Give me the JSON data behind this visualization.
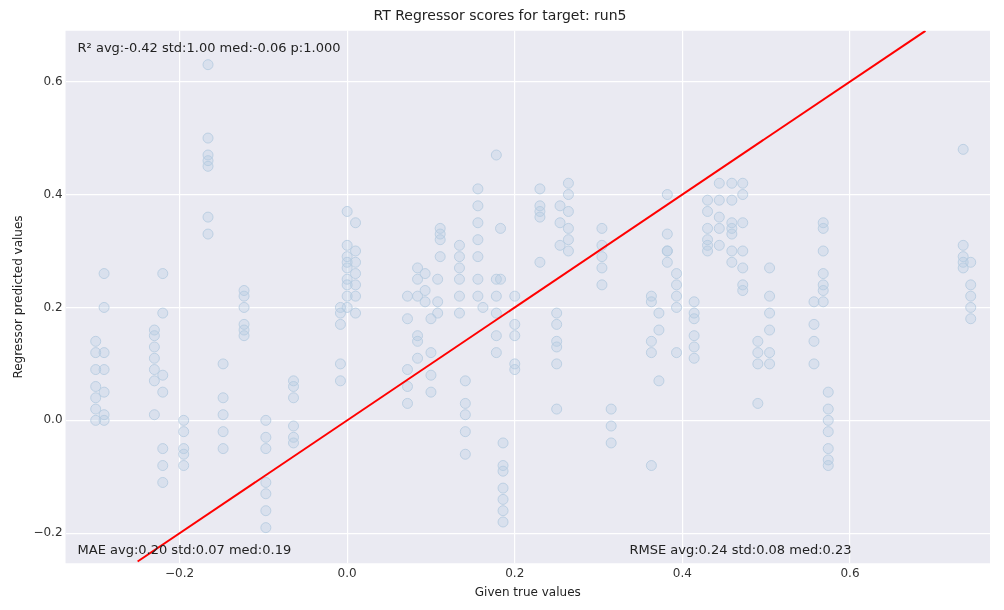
{
  "chart_data": {
    "type": "scatter",
    "title": "RT Regressor scores for target: run5",
    "xlabel": "Given true values",
    "ylabel": "Regressor predicted values",
    "annotations": [
      "R² avg:-0.42 std:1.00 med:-0.06 p:1.000",
      "MAE avg:0.20 std:0.07 med:0.19",
      "RMSE avg:0.24 std:0.08 med:0.23"
    ],
    "xlim": [
      -0.336,
      0.767
    ],
    "ylim": [
      -0.253,
      0.69
    ],
    "xticks": [
      {
        "value": -0.2,
        "label": "−0.2"
      },
      {
        "value": 0,
        "label": "0.0"
      },
      {
        "value": 0.2,
        "label": "0.2"
      },
      {
        "value": 0.4,
        "label": "0.4"
      },
      {
        "value": 0.6,
        "label": "0.6"
      }
    ],
    "yticks": [
      {
        "value": -0.2,
        "label": "−0.2"
      },
      {
        "value": 0,
        "label": "0.0"
      },
      {
        "value": 0.2,
        "label": "0.2"
      },
      {
        "value": 0.4,
        "label": "0.4"
      },
      {
        "value": 0.6,
        "label": "0.6"
      }
    ],
    "grid": true,
    "legend": false,
    "series": [
      {
        "marker": "circle",
        "color": "#b4cbe0",
        "x": [
          -0.3,
          -0.3,
          -0.3,
          -0.3,
          -0.3,
          -0.3,
          -0.3,
          -0.29,
          -0.29,
          -0.29,
          -0.29,
          -0.29,
          -0.29,
          -0.29,
          -0.23,
          -0.23,
          -0.23,
          -0.23,
          -0.23,
          -0.23,
          -0.23,
          -0.22,
          -0.22,
          -0.22,
          -0.22,
          -0.22,
          -0.22,
          -0.22,
          -0.195,
          -0.195,
          -0.195,
          -0.195,
          -0.195,
          -0.166,
          -0.166,
          -0.166,
          -0.166,
          -0.166,
          -0.166,
          -0.166,
          -0.148,
          -0.148,
          -0.148,
          -0.148,
          -0.148,
          -0.123,
          -0.123,
          -0.123,
          -0.123,
          -0.123,
          -0.123,
          -0.097,
          -0.097,
          -0.097,
          -0.097,
          -0.097,
          -0.097,
          -0.097,
          -0.064,
          -0.064,
          -0.064,
          -0.064,
          -0.064,
          -0.064,
          -0.008,
          -0.008,
          -0.008,
          -0.008,
          -0.008,
          0,
          0,
          0,
          0,
          0,
          0,
          0,
          0,
          0,
          0.01,
          0.01,
          0.01,
          0.01,
          0.01,
          0.01,
          0.01,
          0.072,
          0.072,
          0.072,
          0.072,
          0.072,
          0.084,
          0.084,
          0.084,
          0.084,
          0.084,
          0.084,
          0.093,
          0.093,
          0.093,
          0.1,
          0.1,
          0.1,
          0.1,
          0.108,
          0.108,
          0.108,
          0.111,
          0.111,
          0.111,
          0.111,
          0.134,
          0.134,
          0.134,
          0.134,
          0.134,
          0.134,
          0.141,
          0.141,
          0.141,
          0.141,
          0.141,
          0.156,
          0.156,
          0.156,
          0.156,
          0.156,
          0.156,
          0.156,
          0.162,
          0.178,
          0.178,
          0.178,
          0.178,
          0.178,
          0.178,
          0.183,
          0.183,
          0.186,
          0.186,
          0.186,
          0.186,
          0.186,
          0.186,
          0.186,
          0.2,
          0.2,
          0.2,
          0.2,
          0.2,
          0.23,
          0.23,
          0.23,
          0.23,
          0.23,
          0.25,
          0.25,
          0.25,
          0.25,
          0.25,
          0.25,
          0.254,
          0.254,
          0.254,
          0.264,
          0.264,
          0.264,
          0.264,
          0.264,
          0.264,
          0.304,
          0.304,
          0.304,
          0.304,
          0.304,
          0.315,
          0.315,
          0.315,
          0.363,
          0.363,
          0.363,
          0.363,
          0.363,
          0.372,
          0.372,
          0.372,
          0.382,
          0.382,
          0.382,
          0.382,
          0.382,
          0.393,
          0.393,
          0.393,
          0.393,
          0.393,
          0.414,
          0.414,
          0.414,
          0.414,
          0.414,
          0.414,
          0.43,
          0.43,
          0.43,
          0.43,
          0.43,
          0.43,
          0.444,
          0.444,
          0.444,
          0.444,
          0.444,
          0.459,
          0.459,
          0.459,
          0.459,
          0.459,
          0.459,
          0.459,
          0.472,
          0.472,
          0.472,
          0.472,
          0.472,
          0.472,
          0.472,
          0.49,
          0.49,
          0.49,
          0.49,
          0.504,
          0.504,
          0.504,
          0.504,
          0.504,
          0.504,
          0.557,
          0.557,
          0.557,
          0.557,
          0.568,
          0.568,
          0.568,
          0.568,
          0.568,
          0.568,
          0.568,
          0.574,
          0.574,
          0.574,
          0.574,
          0.574,
          0.574,
          0.574,
          0.735,
          0.735,
          0.735,
          0.735,
          0.735,
          0.744,
          0.744,
          0.744,
          0.744,
          0.744
        ],
        "values": [
          0.14,
          0.12,
          0.09,
          0.06,
          0.04,
          0.02,
          0,
          0.26,
          0.2,
          0.12,
          0.09,
          0.05,
          0.01,
          0,
          0.16,
          0.15,
          0.13,
          0.11,
          0.09,
          0.07,
          0.01,
          0.26,
          0.19,
          0.08,
          0.05,
          -0.05,
          -0.08,
          -0.11,
          0,
          -0.02,
          -0.05,
          -0.06,
          -0.08,
          0.63,
          0.5,
          0.47,
          0.46,
          0.45,
          0.36,
          0.33,
          0.1,
          0.04,
          0.01,
          -0.02,
          -0.05,
          0.23,
          0.22,
          0.2,
          0.17,
          0.16,
          0.15,
          0,
          -0.03,
          -0.05,
          -0.11,
          -0.13,
          -0.16,
          -0.19,
          0.07,
          0.06,
          0.04,
          -0.01,
          -0.03,
          -0.04,
          0.2,
          0.19,
          0.17,
          0.1,
          0.07,
          0.37,
          0.31,
          0.29,
          0.28,
          0.27,
          0.25,
          0.24,
          0.22,
          0.2,
          0.35,
          0.3,
          0.28,
          0.26,
          0.24,
          0.22,
          0.19,
          0.22,
          0.18,
          0.09,
          0.06,
          0.03,
          0.27,
          0.25,
          0.22,
          0.15,
          0.14,
          0.11,
          0.26,
          0.23,
          0.21,
          0.18,
          0.12,
          0.08,
          0.05,
          0.25,
          0.21,
          0.19,
          0.34,
          0.33,
          0.32,
          0.29,
          0.31,
          0.29,
          0.27,
          0.25,
          0.22,
          0.19,
          0.07,
          0.03,
          0.01,
          -0.02,
          -0.06,
          0.41,
          0.38,
          0.35,
          0.32,
          0.29,
          0.25,
          0.22,
          0.2,
          0.47,
          0.25,
          0.22,
          0.19,
          0.15,
          0.12,
          0.34,
          0.25,
          -0.04,
          -0.08,
          -0.09,
          -0.12,
          -0.14,
          -0.16,
          -0.18,
          0.22,
          0.17,
          0.15,
          0.1,
          0.09,
          0.41,
          0.38,
          0.37,
          0.36,
          0.28,
          0.19,
          0.17,
          0.14,
          0.13,
          0.1,
          0.02,
          0.38,
          0.35,
          0.31,
          0.42,
          0.4,
          0.37,
          0.34,
          0.32,
          0.3,
          0.34,
          0.31,
          0.29,
          0.27,
          0.24,
          0.02,
          -0.01,
          -0.04,
          0.22,
          0.21,
          0.14,
          0.12,
          -0.08,
          0.19,
          0.16,
          0.07,
          0.4,
          0.33,
          0.3,
          0.3,
          0.28,
          0.26,
          0.24,
          0.22,
          0.2,
          0.12,
          0.21,
          0.19,
          0.18,
          0.15,
          0.13,
          0.11,
          0.39,
          0.37,
          0.34,
          0.32,
          0.31,
          0.3,
          0.42,
          0.39,
          0.36,
          0.34,
          0.31,
          0.42,
          0.39,
          0.35,
          0.34,
          0.33,
          0.3,
          0.28,
          0.42,
          0.4,
          0.35,
          0.3,
          0.27,
          0.24,
          0.23,
          0.14,
          0.12,
          0.1,
          0.03,
          0.27,
          0.22,
          0.19,
          0.16,
          0.12,
          0.1,
          0.21,
          0.17,
          0.14,
          0.1,
          0.35,
          0.34,
          0.3,
          0.26,
          0.24,
          0.23,
          0.21,
          0.05,
          0.02,
          0,
          -0.02,
          -0.05,
          -0.07,
          -0.08,
          0.48,
          0.31,
          0.29,
          0.28,
          0.27,
          0.28,
          0.24,
          0.22,
          0.2,
          0.18
        ]
      },
      {
        "type": "line",
        "marker": "none",
        "color": "#ff0000",
        "x": [
          -0.25,
          0.69
        ],
        "values": [
          -0.25,
          0.69
        ]
      }
    ]
  }
}
